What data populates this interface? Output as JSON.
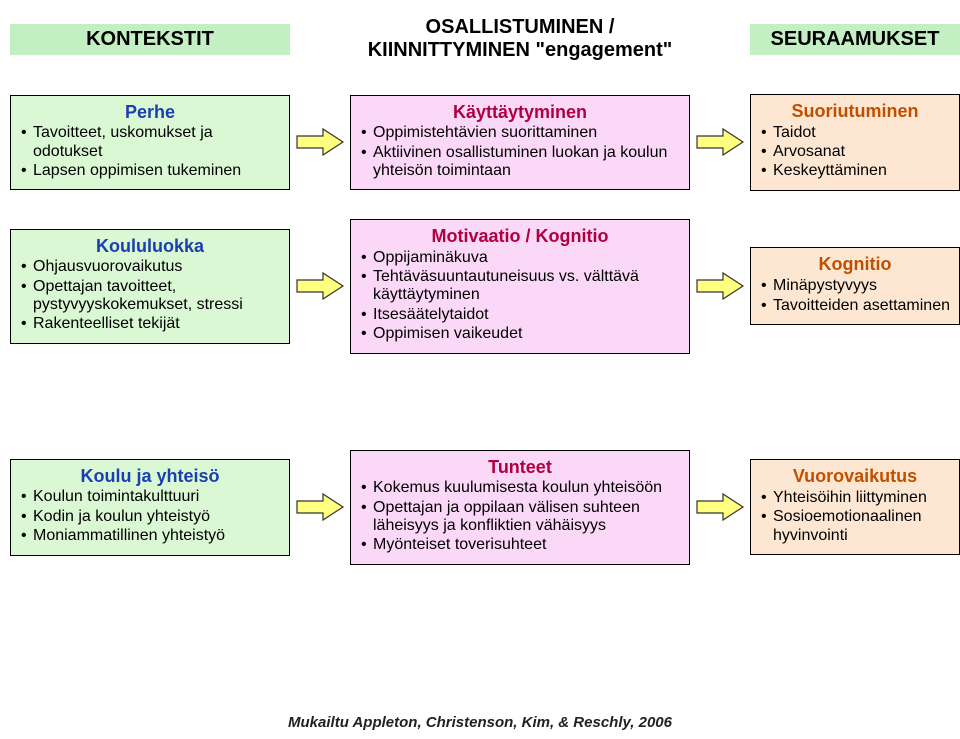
{
  "colors": {
    "header_left": "#c3f0c3",
    "header_mid": "#ffffff",
    "header_right": "#c3f0c3",
    "box_left": "#daf8d4",
    "box_mid": "#fcd8f8",
    "box_right": "#fee7d2",
    "arrow_fill": "#ffff80",
    "arrow_stroke": "#333333",
    "title_left": "#1a3fb0",
    "title_mid": "#b00040",
    "title_right": "#c05000"
  },
  "headers": {
    "left": "KONTEKSTIT",
    "mid_line1": "OSALLISTUMINEN /",
    "mid_line2": "KIINNITTYMINEN \"engagement\"",
    "right": "SEURAAMUKSET"
  },
  "rows": [
    {
      "left": {
        "title": "Perhe",
        "items": [
          "Tavoitteet, uskomukset ja odotukset",
          "Lapsen oppimisen tukeminen"
        ]
      },
      "mid": {
        "title": "Käyttäytyminen",
        "items": [
          "Oppimistehtävien suorittaminen",
          "Aktiivinen osallistuminen luokan ja koulun yhteisön toimintaan"
        ]
      },
      "right": {
        "title": "Suoriutuminen",
        "items": [
          "Taidot",
          "Arvosanat",
          "Keskeyttäminen"
        ]
      }
    },
    {
      "left": {
        "title": "Koululuokka",
        "items": [
          "Ohjausvuorovaikutus",
          "Opettajan tavoitteet, pystyvyyskokemukset, stressi",
          "Rakenteelliset tekijät"
        ]
      },
      "mid": {
        "title": "Motivaatio / Kognitio",
        "items": [
          "Oppijaminäkuva",
          "Tehtäväsuuntautuneisuus vs. välttävä käyttäytyminen",
          "Itsesäätelytaidot",
          "Oppimisen vaikeudet"
        ]
      },
      "right": {
        "title": "Kognitio",
        "items": [
          "Minäpystyvyys",
          "Tavoitteiden asettaminen"
        ]
      }
    },
    {
      "left": {
        "title": "Koulu ja yhteisö",
        "items": [
          "Koulun toimintakulttuuri",
          "Kodin ja koulun yhteistyö",
          "Moniammatillinen yhteistyö"
        ]
      },
      "mid": {
        "title": "Tunteet",
        "items": [
          "Kokemus kuulumisesta koulun yhteisöön",
          "Opettajan ja oppilaan välisen suhteen läheisyys ja konfliktien vähäisyys",
          "Myönteiset toverisuhteet"
        ]
      },
      "right": {
        "title": "Vuorovaikutus",
        "items": [
          "Yhteisöihin liittyminen",
          "Sosioemotio­naalinen hyvinvointi"
        ]
      }
    }
  ],
  "citation": "Mukailtu Appleton, Christenson, Kim, & Reschly, 2006"
}
